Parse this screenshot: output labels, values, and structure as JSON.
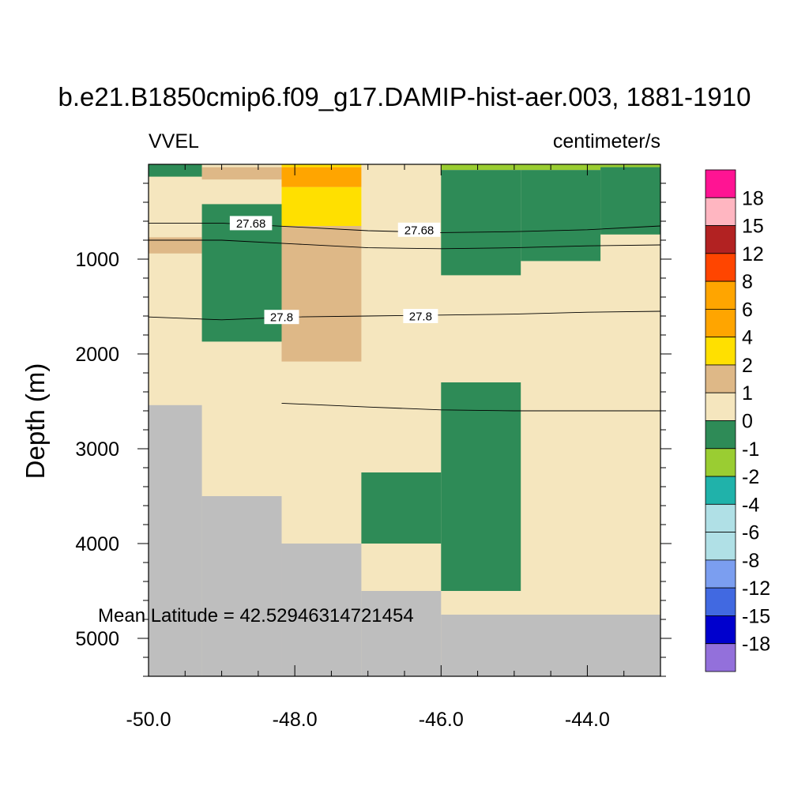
{
  "chart_data": {
    "type": "heatmap",
    "title": "b.e21.B1850cmip6.f09_g17.DAMIP-hist-aer.003, 1881-1910",
    "left_label": "VVEL",
    "right_label": "centimeter/s",
    "ylabel": "Depth (m)",
    "annotation": "Mean Latitude = 42.52946314721454",
    "xlim": [
      -50.0,
      -43.0
    ],
    "ylim": [
      5400,
      0
    ],
    "x_ticks": [
      -50.0,
      -48.0,
      -46.0,
      -44.0
    ],
    "x_tick_labels": [
      "-50.0",
      "-48.0",
      "-46.0",
      "-44.0"
    ],
    "y_ticks": [
      1000,
      2000,
      3000,
      4000,
      5000
    ],
    "y_tick_labels": [
      "1000",
      "2000",
      "3000",
      "4000",
      "5000"
    ],
    "x_edges": [
      -50.0,
      -49.27,
      -48.18,
      -47.09,
      -46.0,
      -44.91,
      -43.82,
      -43.0
    ],
    "depth_edges": [
      0,
      30,
      130,
      240,
      420,
      650,
      770,
      940,
      1020,
      1170,
      1870,
      2080,
      2540,
      2620,
      3250,
      3500,
      4000,
      4500,
      4750,
      5400
    ],
    "colorbar": {
      "labels": [
        "18",
        "15",
        "12",
        "8",
        "6",
        "4",
        "2",
        "1",
        "0",
        "-1",
        "-2",
        "-4",
        "-6",
        "-8",
        "-12",
        "-15",
        "-18"
      ],
      "colors": [
        "#ff1493",
        "#ffb6c1",
        "#b22222",
        "#ff4500",
        "#ffa500",
        "#ffa500",
        "#ffe000",
        "#deb887",
        "#f5e6be",
        "#2e8b57",
        "#9acd32",
        "#20b2aa",
        "#b0e0e6",
        "#b0e0e6",
        "#7b9ef0",
        "#4169e1",
        "#0000cd",
        "#9370db"
      ]
    },
    "land_color": "#bebebe",
    "blocks": [
      {
        "x": [
          -50.0,
          -43.0
        ],
        "d": [
          0,
          5400
        ],
        "color": "#f5e6be"
      },
      {
        "x": [
          -50.0,
          -49.27
        ],
        "d": [
          0,
          130
        ],
        "color": "#2e8b57"
      },
      {
        "x": [
          -49.27,
          -48.18
        ],
        "d": [
          30,
          160
        ],
        "color": "#deb887"
      },
      {
        "x": [
          -48.18,
          -47.09
        ],
        "d": [
          0,
          30
        ],
        "color": "#ffe000"
      },
      {
        "x": [
          -48.18,
          -47.09
        ],
        "d": [
          30,
          240
        ],
        "color": "#ffa500"
      },
      {
        "x": [
          -48.18,
          -47.09
        ],
        "d": [
          240,
          650
        ],
        "color": "#ffe000"
      },
      {
        "x": [
          -48.18,
          -47.09
        ],
        "d": [
          650,
          2080
        ],
        "color": "#deb887"
      },
      {
        "x": [
          -50.0,
          -49.27
        ],
        "d": [
          770,
          940
        ],
        "color": "#deb887"
      },
      {
        "x": [
          -49.27,
          -48.18
        ],
        "d": [
          420,
          1870
        ],
        "color": "#2e8b57"
      },
      {
        "x": [
          -46.0,
          -43.0
        ],
        "d": [
          0,
          60
        ],
        "color": "#9acd32"
      },
      {
        "x": [
          -46.0,
          -44.91
        ],
        "d": [
          60,
          1170
        ],
        "color": "#2e8b57"
      },
      {
        "x": [
          -44.91,
          -43.82
        ],
        "d": [
          60,
          1020
        ],
        "color": "#2e8b57"
      },
      {
        "x": [
          -43.82,
          -43.0
        ],
        "d": [
          30,
          740
        ],
        "color": "#2e8b57"
      },
      {
        "x": [
          -46.0,
          -44.91
        ],
        "d": [
          2300,
          4500
        ],
        "color": "#2e8b57"
      },
      {
        "x": [
          -47.09,
          -46.0
        ],
        "d": [
          3250,
          4000
        ],
        "color": "#2e8b57"
      },
      {
        "x": [
          -50.0,
          -49.27
        ],
        "d": [
          2540,
          5400
        ],
        "color": "#bebebe"
      },
      {
        "x": [
          -49.27,
          -48.18
        ],
        "d": [
          3500,
          5400
        ],
        "color": "#bebebe"
      },
      {
        "x": [
          -48.18,
          -47.09
        ],
        "d": [
          4000,
          5400
        ],
        "color": "#bebebe"
      },
      {
        "x": [
          -47.09,
          -46.0
        ],
        "d": [
          4500,
          5400
        ],
        "color": "#bebebe"
      },
      {
        "x": [
          -46.0,
          -43.0
        ],
        "d": [
          4750,
          5400
        ],
        "color": "#bebebe"
      }
    ],
    "contours": [
      {
        "label": "27.68",
        "points": [
          [
            -50.0,
            620
          ],
          [
            -49.0,
            620
          ],
          [
            -48.0,
            660
          ],
          [
            -47.0,
            700
          ],
          [
            -46.0,
            720
          ],
          [
            -45.0,
            710
          ],
          [
            -44.0,
            690
          ],
          [
            -43.0,
            650
          ]
        ],
        "label_at": [
          [
            -48.6,
            620
          ],
          [
            -46.3,
            690
          ]
        ]
      },
      {
        "label": "",
        "points": [
          [
            -50.0,
            800
          ],
          [
            -49.0,
            800
          ],
          [
            -48.0,
            840
          ],
          [
            -47.0,
            880
          ],
          [
            -46.0,
            890
          ],
          [
            -45.0,
            880
          ],
          [
            -44.0,
            860
          ],
          [
            -43.0,
            850
          ]
        ],
        "label_at": []
      },
      {
        "label": "27.8",
        "points": [
          [
            -50.0,
            1610
          ],
          [
            -49.0,
            1640
          ],
          [
            -48.0,
            1610
          ],
          [
            -47.0,
            1600
          ],
          [
            -46.0,
            1590
          ],
          [
            -45.0,
            1580
          ],
          [
            -44.0,
            1560
          ],
          [
            -43.0,
            1550
          ]
        ],
        "label_at": [
          [
            -48.18,
            1610
          ],
          [
            -46.28,
            1600
          ]
        ]
      },
      {
        "label": "",
        "points": [
          [
            -48.18,
            2520
          ],
          [
            -47.0,
            2560
          ],
          [
            -46.0,
            2590
          ],
          [
            -45.0,
            2600
          ],
          [
            -43.0,
            2600
          ]
        ],
        "label_at": []
      }
    ]
  }
}
